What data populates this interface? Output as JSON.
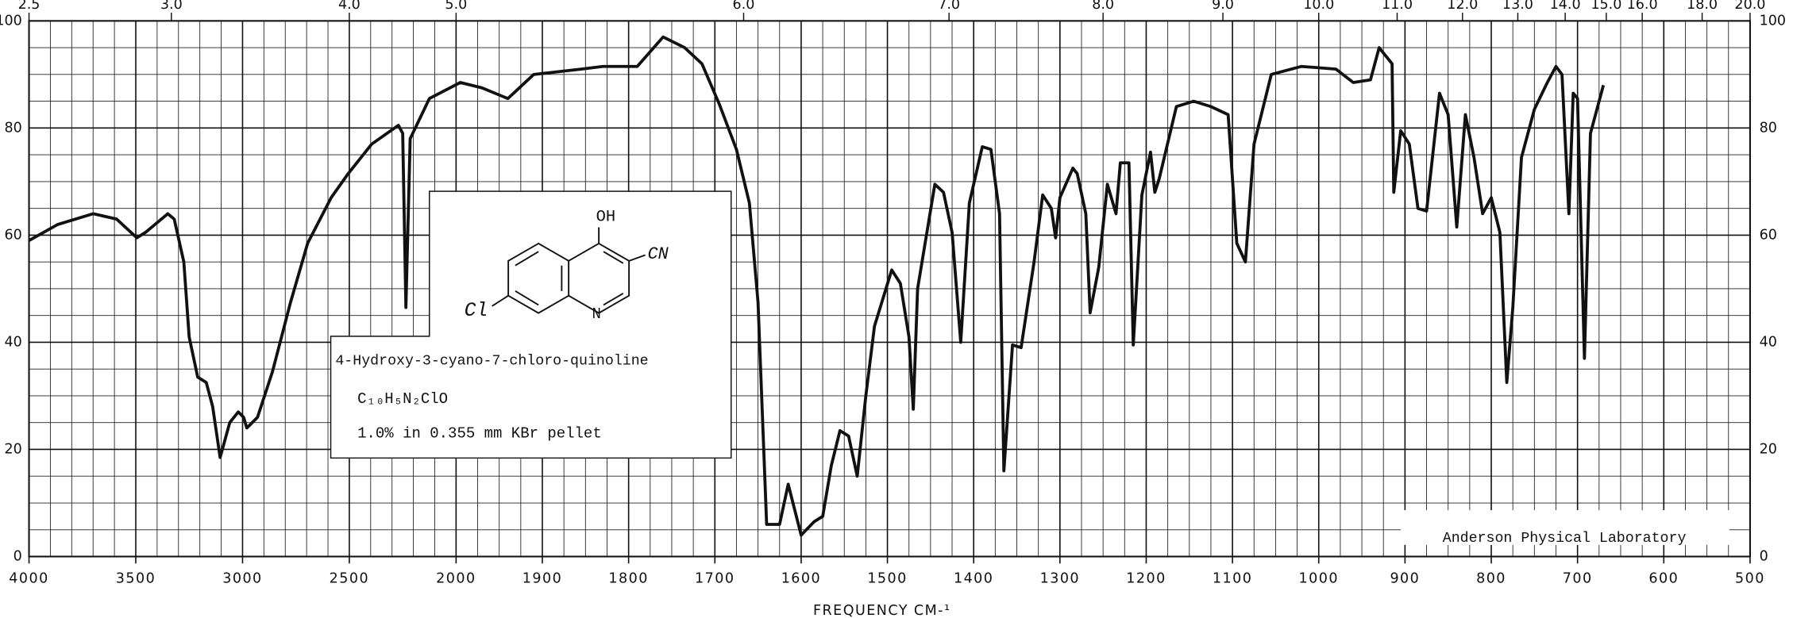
{
  "chart_data": {
    "type": "line",
    "xlabel": "FREQUENCY  CM-¹",
    "x_segments": [
      {
        "xlim": [
          4000,
          2000
        ],
        "xticks": [
          4000,
          3500,
          3000,
          2500
        ],
        "minor_step": 100
      },
      {
        "xlim": [
          2000,
          500
        ],
        "xticks": [
          2000,
          1900,
          1800,
          1700,
          1600,
          1500,
          1400,
          1300,
          1200,
          1100,
          1000,
          900,
          800,
          700,
          600,
          500
        ],
        "minor_step": 25
      }
    ],
    "top_xticks": [
      2.5,
      {
        "value": 3,
        "label": "3.0"
      },
      {
        "value": 4,
        "label": "4.0"
      },
      {
        "value": 5,
        "label": "5.0"
      },
      {
        "value": 6,
        "label": "6.0"
      },
      {
        "value": 7,
        "label": "7.0"
      },
      {
        "value": 8,
        "label": "8.0"
      },
      {
        "value": 9,
        "label": "9.0"
      },
      {
        "value": 10,
        "label": "10.0"
      },
      {
        "value": 11,
        "label": "11.0"
      },
      {
        "value": 12,
        "label": "12.0"
      },
      {
        "value": 13,
        "label": "13.0"
      },
      {
        "value": 14,
        "label": "14.0"
      },
      {
        "value": 15,
        "label": "15.0"
      },
      {
        "value": 16,
        "label": "16.0"
      },
      {
        "value": 18,
        "label": "18.0"
      },
      {
        "value": 20,
        "label": "20.0"
      }
    ],
    "ylim": [
      0,
      100
    ],
    "yticks": [
      0,
      20,
      40,
      60,
      80,
      100
    ],
    "y_minor_step": 5,
    "grid": true,
    "color": "#111111",
    "x": [
      4000,
      3865,
      3700,
      3590,
      3495,
      3455,
      3350,
      3320,
      3275,
      3250,
      3210,
      3170,
      3140,
      3105,
      3060,
      3020,
      2995,
      2980,
      2930,
      2860,
      2775,
      2695,
      2585,
      2505,
      2395,
      2270,
      2250,
      2235,
      2215,
      2125,
      1995,
      1970,
      1940,
      1910,
      1855,
      1830,
      1790,
      1760,
      1735,
      1715,
      1695,
      1675,
      1660,
      1650,
      1640,
      1625,
      1615,
      1600,
      1585,
      1575,
      1565,
      1555,
      1545,
      1535,
      1525,
      1515,
      1495,
      1485,
      1475,
      1470,
      1465,
      1445,
      1435,
      1425,
      1415,
      1405,
      1390,
      1380,
      1370,
      1365,
      1355,
      1345,
      1330,
      1320,
      1310,
      1305,
      1300,
      1285,
      1280,
      1270,
      1265,
      1255,
      1245,
      1235,
      1230,
      1220,
      1215,
      1205,
      1195,
      1190,
      1185,
      1165,
      1145,
      1125,
      1105,
      1095,
      1085,
      1075,
      1055,
      1020,
      980,
      960,
      940,
      930,
      915,
      913,
      905,
      895,
      885,
      875,
      860,
      850,
      840,
      830,
      820,
      810,
      800,
      790,
      782,
      775,
      765,
      750,
      735,
      725,
      718,
      710,
      705,
      700,
      692,
      685,
      670
    ],
    "values": [
      59,
      62,
      64,
      63,
      59.5,
      60.5,
      64,
      63,
      55,
      41,
      33.5,
      32.5,
      28,
      18.5,
      25,
      27,
      26,
      24,
      26,
      34.5,
      47.5,
      58.5,
      67,
      71.5,
      77,
      80.5,
      79,
      46.5,
      78,
      85.5,
      88.5,
      87.5,
      85.5,
      90,
      91,
      91.5,
      91.5,
      97,
      95,
      92,
      84.5,
      76,
      66,
      47.5,
      6,
      6,
      13.5,
      4,
      6.5,
      7.5,
      17,
      23.5,
      22.5,
      15,
      30,
      43,
      53.5,
      51,
      41,
      27.5,
      50,
      69.5,
      68,
      60.5,
      40,
      66,
      76.5,
      76,
      64,
      16,
      39.5,
      39,
      55,
      67.5,
      65,
      59.5,
      67,
      72.5,
      71.5,
      64,
      45.5,
      54,
      69.5,
      64,
      73.5,
      73.5,
      39.5,
      67.5,
      75.5,
      68,
      70.5,
      84,
      85,
      84,
      82.5,
      58.5,
      55,
      77,
      90,
      91.5,
      91,
      88.5,
      89,
      95,
      92,
      68,
      79.5,
      77,
      65,
      64.5,
      86.5,
      82.5,
      61.5,
      82.5,
      74.5,
      64,
      67,
      60.5,
      32.5,
      46.5,
      74.5,
      83.5,
      88.5,
      91.5,
      90,
      64,
      86.5,
      85.5,
      37,
      79,
      88
    ],
    "annotations": [
      "4-Hydroxy-3-cyano-7-chloro-quinoline",
      "C₁₀H₅N₂ClO",
      "1.0% in 0.355 mm  KBr pellet",
      "Anderson Physical Laboratory"
    ],
    "structure_labels": [
      "OH",
      "CN",
      "Cl",
      "N"
    ]
  }
}
